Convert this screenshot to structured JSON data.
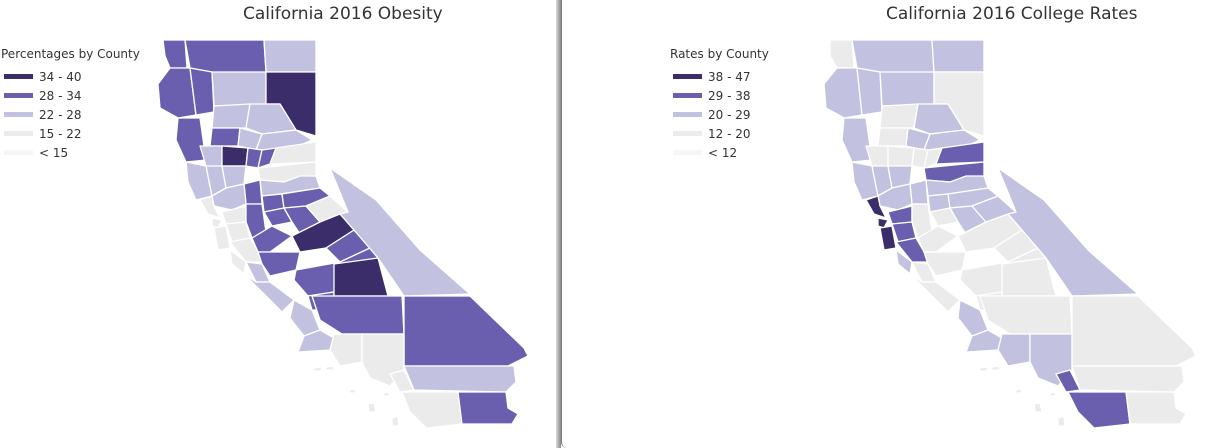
{
  "colors": {
    "c5": "#3b2d69",
    "c4": "#6a5faf",
    "c3": "#c3c1e0",
    "c2": "#ebebeb",
    "c1": "#f6f6f6"
  },
  "left": {
    "title": "California 2016 Obesity",
    "legend_title": "Percentages by County",
    "legend": [
      {
        "label": "34 - 40",
        "level": "c5"
      },
      {
        "label": "28 - 34",
        "level": "c4"
      },
      {
        "label": "22 - 28",
        "level": "c3"
      },
      {
        "label": "15 - 22",
        "level": "c2"
      },
      {
        "label": "< 15",
        "level": "c1"
      }
    ]
  },
  "right": {
    "title": "California 2016 College Rates",
    "legend_title": "Rates by County",
    "legend": [
      {
        "label": "38 - 47",
        "level": "c5"
      },
      {
        "label": "29 - 38",
        "level": "c4"
      },
      {
        "label": "20 - 29",
        "level": "c3"
      },
      {
        "label": "12 - 20",
        "level": "c2"
      },
      {
        "label": "< 12",
        "level": "c1"
      }
    ]
  }
}
